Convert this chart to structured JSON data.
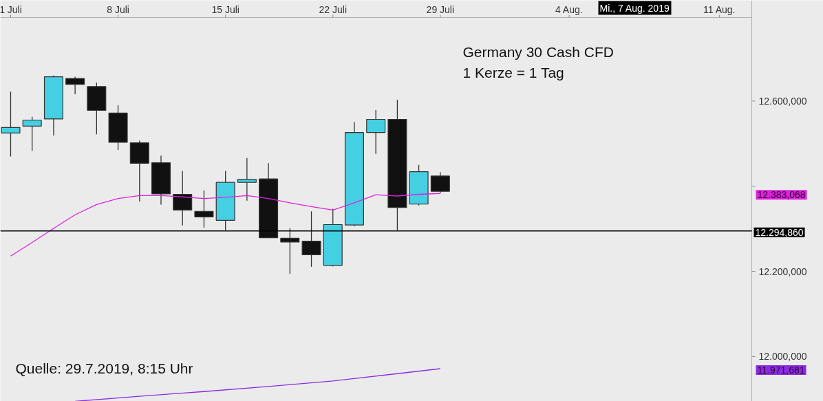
{
  "chart_data": {
    "type": "candlestick",
    "title": "Germany 30 Cash CFD",
    "subtitle": "1 Kerze = 1 Tag",
    "categories": [
      "1 Juli",
      null,
      null,
      null,
      null,
      "8 Juli",
      null,
      null,
      null,
      null,
      "15 Juli",
      null,
      null,
      null,
      null,
      "22 Juli",
      null,
      null,
      null,
      null,
      "29 Juli",
      null,
      null,
      null,
      null,
      null,
      "4 Aug.",
      null,
      null,
      null,
      null,
      null,
      null,
      "11 Aug.",
      null
    ],
    "ohlc": [
      [
        12525,
        12622,
        12470,
        12538
      ],
      [
        12541,
        12563,
        12483,
        12555
      ],
      [
        12558,
        12660,
        12519,
        12657
      ],
      [
        12653,
        12657,
        12616,
        12639
      ],
      [
        12634,
        12643,
        12522,
        12578
      ],
      [
        12572,
        12590,
        12485,
        12503
      ],
      [
        12502,
        12507,
        12364,
        12454
      ],
      [
        12455,
        12472,
        12357,
        12382
      ],
      [
        12381,
        12436,
        12308,
        12344
      ],
      [
        12341,
        12390,
        12303,
        12328
      ],
      [
        12320,
        12436,
        12297,
        12409
      ],
      [
        12409,
        12466,
        12366,
        12416
      ],
      [
        12417,
        12454,
        12279,
        12279
      ],
      [
        12278,
        12301,
        12194,
        12269
      ],
      [
        12271,
        12341,
        12211,
        12239
      ],
      [
        12214,
        12347,
        12212,
        12310
      ],
      [
        12309,
        12551,
        12306,
        12526
      ],
      [
        12526,
        12579,
        12476,
        12557
      ],
      [
        12557,
        12603,
        12297,
        12350
      ],
      [
        12358,
        12450,
        12355,
        12434
      ],
      [
        12424,
        12433,
        12384,
        12388
      ],
      null,
      null,
      null,
      null,
      null,
      null,
      null,
      null,
      null,
      null,
      null,
      null,
      null,
      null
    ],
    "colors": [
      "#45cfe3",
      "#45cfe3",
      "#45cfe3",
      "#111111",
      "#111111",
      "#111111",
      "#111111",
      "#111111",
      "#111111",
      "#111111",
      "#45cfe3",
      "#45cfe3",
      "#111111",
      "#111111",
      "#111111",
      "#45cfe3",
      "#45cfe3",
      "#45cfe3",
      "#111111",
      "#45cfe3",
      "#111111",
      null,
      null,
      null,
      null,
      null,
      null,
      null,
      null,
      null,
      null,
      null,
      null,
      null,
      null
    ],
    "series": [
      {
        "type": "line",
        "color": "#dd22dd",
        "values": [
          12236,
          12268,
          12301,
          12333,
          12357,
          12371,
          12378,
          12378,
          12375,
          12371,
          12374,
          12378,
          12371,
          12361,
          12352,
          12344,
          12361,
          12380,
          12377,
          12381,
          12383.068,
          null,
          null,
          null,
          null,
          null,
          null,
          null,
          null,
          null,
          null,
          null,
          null,
          null,
          null
        ]
      },
      {
        "type": "line",
        "color": "#8a2be2",
        "values": [
          null,
          null,
          null,
          11895,
          null,
          null,
          11907,
          null,
          null,
          11918,
          null,
          null,
          11930,
          null,
          null,
          11943,
          null,
          null,
          11960,
          null,
          11971.681,
          null,
          null,
          null,
          null,
          null,
          null,
          null,
          null,
          null,
          null,
          null,
          null,
          null,
          null
        ]
      }
    ],
    "ylim": [
      11895,
      12796
    ],
    "yticks": [
      {
        "value": 12000,
        "label": "12.000,000"
      },
      {
        "value": 12200,
        "label": "12.200,000"
      },
      {
        "value": 12400,
        "label": null
      },
      {
        "value": 12600,
        "label": "12.600,000"
      }
    ],
    "ref_lines": [
      {
        "axis": "y",
        "value": 12294.86,
        "label": "12.294,860",
        "color": "#000000"
      }
    ],
    "annotations": [
      "Quelle: 29.7.2019, 8:15 Uhr",
      "Mi., 7 Aug. 2019",
      "12.383,068",
      "11.971,681"
    ]
  }
}
